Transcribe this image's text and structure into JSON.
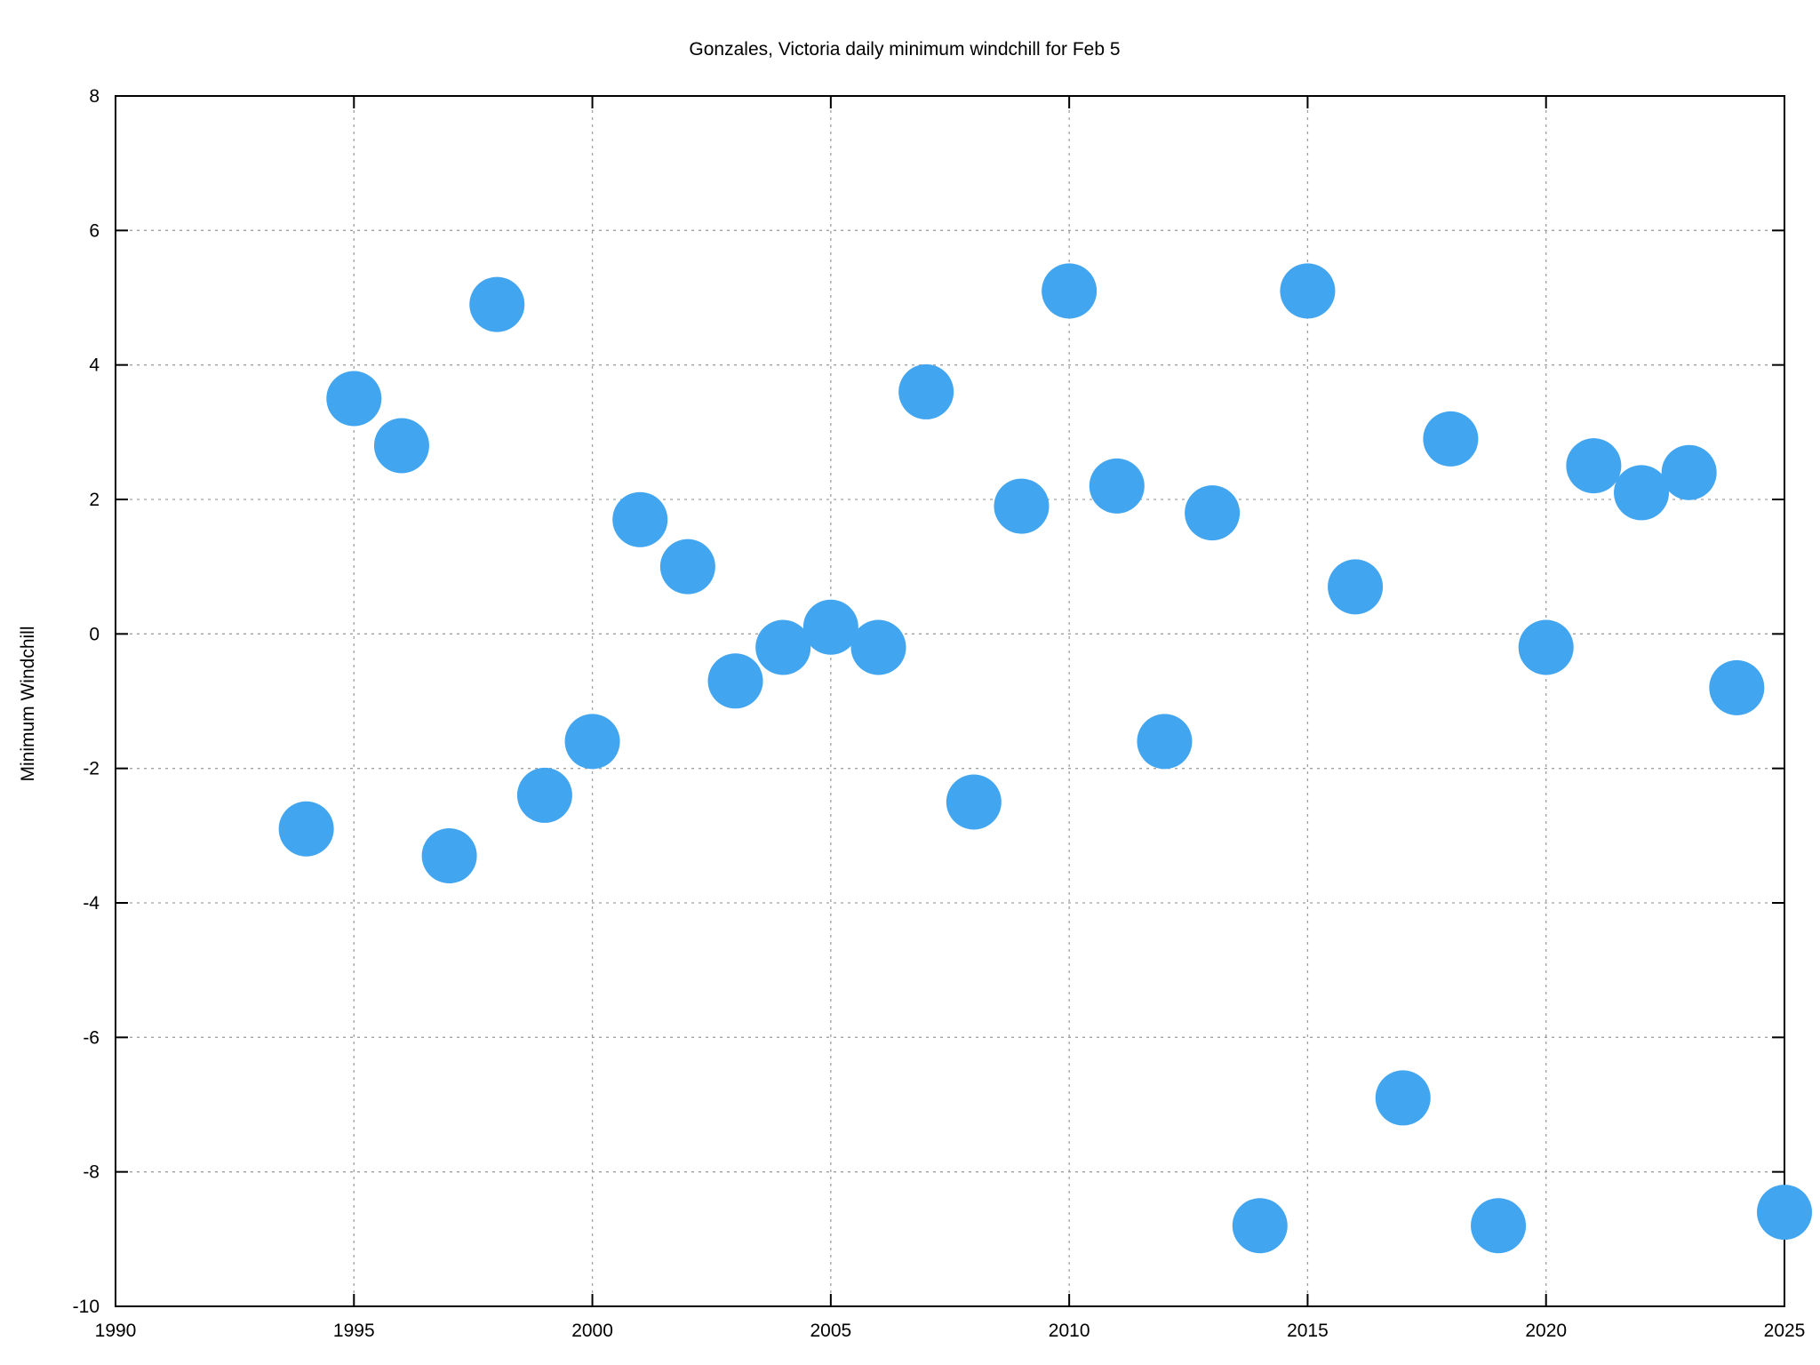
{
  "chart_data": {
    "type": "scatter",
    "title": "Gonzales, Victoria daily minimum windchill for Feb 5",
    "xlabel": "",
    "ylabel": "Minimum Windchill",
    "xlim": [
      1990,
      2025
    ],
    "ylim": [
      -10,
      8
    ],
    "xticks": [
      1990,
      1995,
      2000,
      2005,
      2010,
      2015,
      2020,
      2025
    ],
    "yticks": [
      -10,
      -8,
      -6,
      -4,
      -2,
      0,
      2,
      4,
      6,
      8
    ],
    "grid": true,
    "marker_color": "#42a5f0",
    "points": [
      {
        "x": 1994,
        "y": -2.9
      },
      {
        "x": 1995,
        "y": 3.5
      },
      {
        "x": 1996,
        "y": 2.8
      },
      {
        "x": 1997,
        "y": -3.3
      },
      {
        "x": 1998,
        "y": 4.9
      },
      {
        "x": 1999,
        "y": -2.4
      },
      {
        "x": 2000,
        "y": -1.6
      },
      {
        "x": 2001,
        "y": 1.7
      },
      {
        "x": 2002,
        "y": 1.0
      },
      {
        "x": 2003,
        "y": -0.7
      },
      {
        "x": 2004,
        "y": -0.2
      },
      {
        "x": 2005,
        "y": 0.1
      },
      {
        "x": 2006,
        "y": -0.2
      },
      {
        "x": 2007,
        "y": 3.6
      },
      {
        "x": 2008,
        "y": -2.5
      },
      {
        "x": 2009,
        "y": 1.9
      },
      {
        "x": 2010,
        "y": 5.1
      },
      {
        "x": 2011,
        "y": 2.2
      },
      {
        "x": 2012,
        "y": -1.6
      },
      {
        "x": 2013,
        "y": 1.8
      },
      {
        "x": 2014,
        "y": -8.8
      },
      {
        "x": 2015,
        "y": 5.1
      },
      {
        "x": 2016,
        "y": 0.7
      },
      {
        "x": 2017,
        "y": -6.9
      },
      {
        "x": 2018,
        "y": 2.9
      },
      {
        "x": 2019,
        "y": -8.8
      },
      {
        "x": 2020,
        "y": -0.2
      },
      {
        "x": 2021,
        "y": 2.5
      },
      {
        "x": 2022,
        "y": 2.1
      },
      {
        "x": 2023,
        "y": 2.4
      },
      {
        "x": 2024,
        "y": -0.8
      },
      {
        "x": 2025,
        "y": -8.6
      }
    ]
  }
}
